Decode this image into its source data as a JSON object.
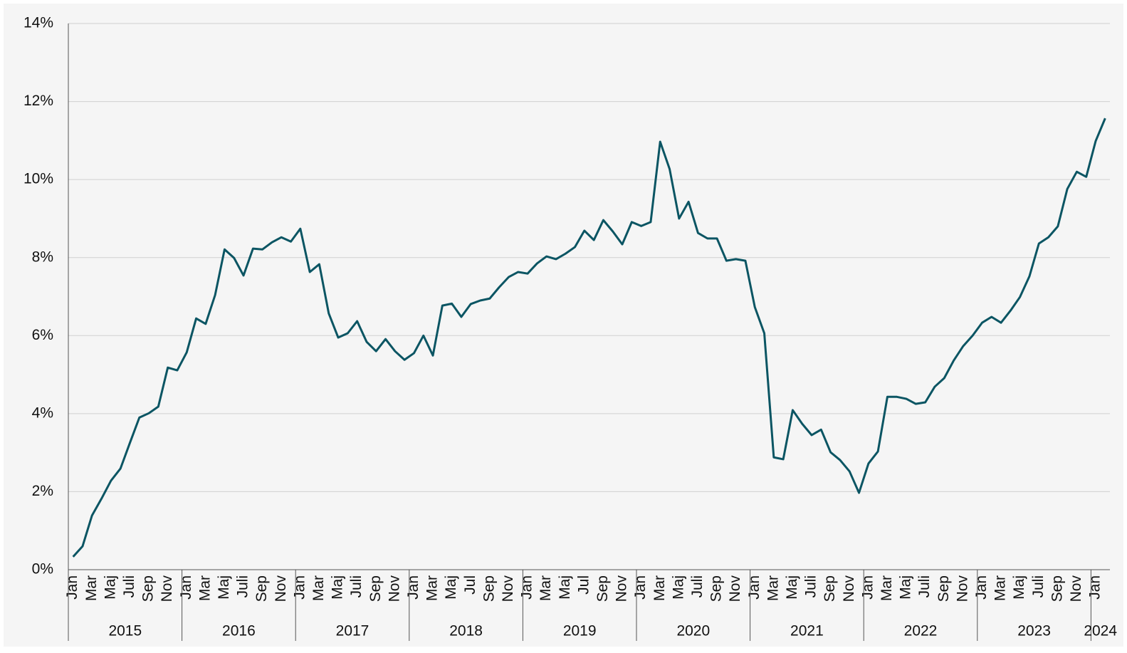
{
  "chart_data": {
    "type": "line",
    "categories": [
      "Jan",
      null,
      "Mar",
      null,
      "Maj",
      null,
      "Juli",
      null,
      "Sep",
      null,
      "Nov",
      null,
      "Jan",
      null,
      "Mar",
      null,
      "Maj",
      null,
      "Juli",
      null,
      "Sep",
      null,
      "Nov",
      null,
      "Jan",
      null,
      "Mar",
      null,
      "Maj",
      null,
      "Juli",
      null,
      "Sep",
      null,
      "Nov",
      null,
      "Jan",
      null,
      "Mar",
      null,
      "Maj",
      null,
      "Jul",
      null,
      "Sep",
      null,
      "Nov",
      null,
      "Jan",
      null,
      "Mar",
      null,
      "Maj",
      null,
      "Jul",
      null,
      "Sep",
      null,
      "Nov",
      null,
      "Jan",
      null,
      "Mar",
      null,
      "Maj",
      null,
      "Juli",
      null,
      "Sep",
      null,
      "Nov",
      null,
      "Jan",
      null,
      "Mar",
      null,
      "Maj",
      null,
      "Juli",
      null,
      "Sep",
      null,
      "Nov",
      null,
      "Jan",
      null,
      "Mar",
      null,
      "Maj",
      null,
      "Juli",
      null,
      "Sep",
      null,
      "Nov",
      null,
      "Jan",
      null,
      "Mar",
      null,
      "Maj",
      null,
      "Juli",
      null,
      "Sep",
      null,
      "Nov",
      null,
      "Jan",
      null
    ],
    "x_groups": [
      "2015",
      "2016",
      "2017",
      "2018",
      "2019",
      "2020",
      "2021",
      "2022",
      "2023",
      "2024"
    ],
    "values": [
      0.33,
      0.6,
      1.39,
      1.82,
      2.28,
      2.59,
      3.25,
      3.9,
      4.01,
      4.18,
      5.18,
      5.11,
      5.57,
      6.44,
      6.3,
      7.04,
      8.21,
      7.99,
      7.54,
      8.23,
      8.21,
      8.39,
      8.52,
      8.41,
      8.74,
      7.63,
      7.83,
      6.57,
      5.95,
      6.06,
      6.37,
      5.84,
      5.6,
      5.91,
      5.6,
      5.38,
      5.55,
      6.0,
      5.49,
      6.77,
      6.82,
      6.48,
      6.81,
      6.9,
      6.95,
      7.24,
      7.5,
      7.63,
      7.59,
      7.85,
      8.03,
      7.96,
      8.1,
      8.27,
      8.69,
      8.45,
      8.96,
      8.67,
      8.34,
      8.91,
      8.81,
      8.91,
      10.97,
      10.27,
      9.0,
      9.43,
      8.63,
      8.49,
      8.49,
      7.92,
      7.96,
      7.92,
      6.73,
      6.06,
      2.88,
      2.83,
      4.09,
      3.74,
      3.45,
      3.59,
      3.01,
      2.81,
      2.52,
      1.97,
      2.72,
      3.03,
      4.43,
      4.43,
      4.38,
      4.25,
      4.29,
      4.69,
      4.91,
      5.36,
      5.73,
      6.0,
      6.33,
      6.48,
      6.33,
      6.64,
      6.99,
      7.52,
      8.36,
      8.52,
      8.8,
      9.76,
      10.2,
      10.07,
      10.99,
      11.57
    ],
    "color": "#0b5563",
    "ylim": [
      0,
      14
    ],
    "yticks": [
      {
        "value": 0,
        "label": "0%"
      },
      {
        "value": 2,
        "label": "2%"
      },
      {
        "value": 4,
        "label": "4%"
      },
      {
        "value": 6,
        "label": "6%"
      },
      {
        "value": 8,
        "label": "8%"
      },
      {
        "value": 10,
        "label": "10%"
      },
      {
        "value": 12,
        "label": "12%"
      },
      {
        "value": 14,
        "label": "14%"
      }
    ],
    "grid": true
  }
}
